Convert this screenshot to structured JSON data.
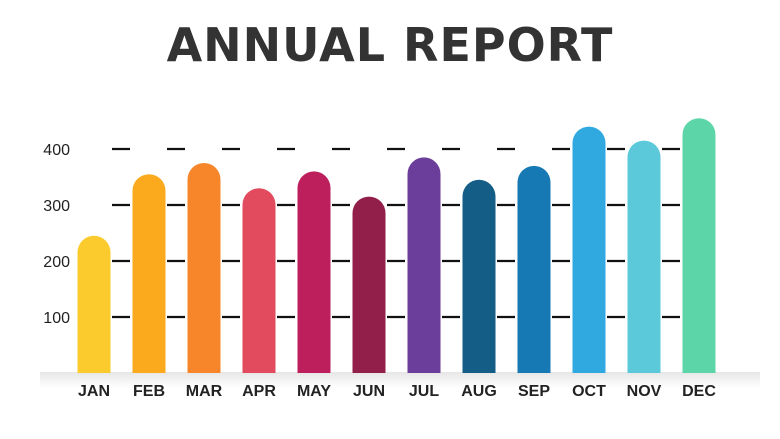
{
  "chart_data": {
    "type": "bar",
    "title": "ANNUAL REPORT",
    "categories": [
      "JAN",
      "FEB",
      "MAR",
      "APR",
      "MAY",
      "JUN",
      "JUL",
      "AUG",
      "SEP",
      "OCT",
      "NOV",
      "DEC"
    ],
    "values": [
      245,
      355,
      375,
      330,
      360,
      315,
      385,
      345,
      370,
      440,
      415,
      455
    ],
    "colors": [
      "#FBCB2E",
      "#FBAA1E",
      "#F7862B",
      "#E24A5D",
      "#BD1F5C",
      "#921E4A",
      "#6B3E9C",
      "#135D87",
      "#1679B3",
      "#2FA9E0",
      "#5BC9DA",
      "#5CD6A8"
    ],
    "yticks": [
      100,
      200,
      300,
      400
    ],
    "ylim": [
      0,
      480
    ],
    "grid": "dashed",
    "legend": "none"
  }
}
